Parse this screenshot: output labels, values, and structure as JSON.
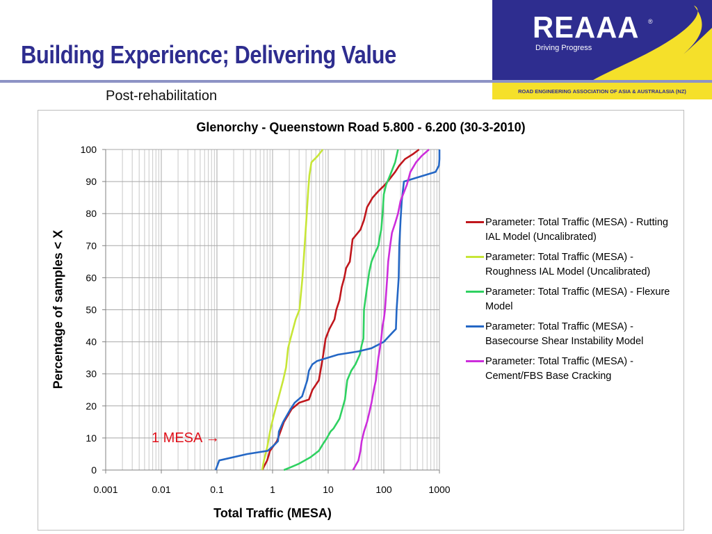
{
  "slide": {
    "title": "Building Experience; Delivering Value",
    "subtitle": "Post-rehabilitation"
  },
  "logo": {
    "wordmark": "REAAA",
    "registered": "®",
    "tagline": "Driving Progress",
    "strip_text": "ROAD ENGINEERING ASSOCIATION OF ASIA & AUSTRALASIA (NZ)",
    "colors": {
      "navy": "#2e2d8f",
      "yellow": "#f5e02a"
    }
  },
  "chart_data": {
    "type": "line",
    "title": "Glenorchy - Queenstown Road 5.800 - 6.200 (30-3-2010)",
    "xlabel": "Total Traffic (MESA)",
    "ylabel": "Percentage of samples < X",
    "xscale": "log",
    "xlim": [
      0.001,
      1000
    ],
    "ylim": [
      0,
      100
    ],
    "xticks": [
      "0.001",
      "0.01",
      "0.1",
      "1",
      "10",
      "100",
      "1000"
    ],
    "yticks": [
      "0",
      "10",
      "20",
      "30",
      "40",
      "50",
      "60",
      "70",
      "80",
      "90",
      "100"
    ],
    "grid": true,
    "legend_position": "right",
    "annotation": {
      "text": "1 MESA",
      "arrow": "→",
      "color": "#e0101a"
    },
    "series": [
      {
        "name": "Parameter: Total Traffic (MESA) - Rutting IAL Model (Uncalibrated)",
        "color": "#c0161c",
        "points": [
          [
            0.65,
            0
          ],
          [
            0.8,
            3
          ],
          [
            0.9,
            6
          ],
          [
            1.2,
            9
          ],
          [
            1.6,
            15
          ],
          [
            2.2,
            19
          ],
          [
            3,
            21
          ],
          [
            4.5,
            22
          ],
          [
            5.2,
            25
          ],
          [
            6.8,
            28
          ],
          [
            8,
            35
          ],
          [
            9,
            41
          ],
          [
            10.5,
            44
          ],
          [
            13,
            47
          ],
          [
            14,
            50
          ],
          [
            16,
            53
          ],
          [
            17.5,
            57
          ],
          [
            19.5,
            60
          ],
          [
            21,
            63
          ],
          [
            24.5,
            65
          ],
          [
            27.5,
            72
          ],
          [
            38,
            75
          ],
          [
            44,
            78
          ],
          [
            50,
            82
          ],
          [
            63,
            85
          ],
          [
            80,
            87
          ],
          [
            105,
            89
          ],
          [
            130,
            91
          ],
          [
            160,
            93
          ],
          [
            190,
            95
          ],
          [
            240,
            97
          ],
          [
            330,
            98.5
          ],
          [
            430,
            100
          ]
        ]
      },
      {
        "name": "Parameter: Total Traffic (MESA) - Roughness IAL Model (Uncalibrated)",
        "color": "#c7e637",
        "points": [
          [
            0.65,
            0
          ],
          [
            0.7,
            3
          ],
          [
            0.8,
            7
          ],
          [
            0.9,
            12
          ],
          [
            1.05,
            17
          ],
          [
            1.3,
            23
          ],
          [
            1.55,
            28
          ],
          [
            1.75,
            32
          ],
          [
            1.9,
            38
          ],
          [
            2.1,
            41
          ],
          [
            2.6,
            47
          ],
          [
            3.05,
            50
          ],
          [
            3.45,
            60
          ],
          [
            3.7,
            68
          ],
          [
            4.05,
            78
          ],
          [
            4.4,
            88
          ],
          [
            4.6,
            92
          ],
          [
            5,
            96
          ],
          [
            6.5,
            98
          ],
          [
            8,
            100
          ]
        ]
      },
      {
        "name": "Parameter: Total Traffic (MESA) - Flexure Model",
        "color": "#2fd161",
        "points": [
          [
            1.6,
            0
          ],
          [
            2.2,
            1
          ],
          [
            3,
            2
          ],
          [
            4.8,
            4
          ],
          [
            6.8,
            6
          ],
          [
            8,
            8
          ],
          [
            9.5,
            10
          ],
          [
            11,
            12
          ],
          [
            12.5,
            13
          ],
          [
            16,
            16
          ],
          [
            20,
            22
          ],
          [
            22,
            28
          ],
          [
            26,
            31
          ],
          [
            31,
            33
          ],
          [
            37,
            36
          ],
          [
            40,
            39
          ],
          [
            43,
            41
          ],
          [
            44,
            50
          ],
          [
            50,
            57
          ],
          [
            55,
            62
          ],
          [
            60,
            65
          ],
          [
            67,
            67
          ],
          [
            80,
            70
          ],
          [
            85,
            73
          ],
          [
            90,
            75
          ],
          [
            95,
            80
          ],
          [
            100,
            86
          ],
          [
            110,
            89
          ],
          [
            130,
            92
          ],
          [
            160,
            96
          ],
          [
            180,
            100
          ]
        ]
      },
      {
        "name": "Parameter: Total Traffic (MESA) - Basecourse Shear Instability Model",
        "color": "#2467c5",
        "points": [
          [
            0.095,
            0
          ],
          [
            0.11,
            3
          ],
          [
            0.35,
            5
          ],
          [
            0.82,
            6
          ],
          [
            1.1,
            8
          ],
          [
            1.25,
            9
          ],
          [
            1.3,
            12
          ],
          [
            1.55,
            15
          ],
          [
            2.1,
            19
          ],
          [
            2.5,
            21
          ],
          [
            3.4,
            23
          ],
          [
            4.2,
            28
          ],
          [
            4.5,
            31
          ],
          [
            5.2,
            33
          ],
          [
            6.3,
            34
          ],
          [
            15,
            36
          ],
          [
            35,
            37
          ],
          [
            60,
            38
          ],
          [
            100,
            40
          ],
          [
            145,
            43
          ],
          [
            165,
            44
          ],
          [
            170,
            50
          ],
          [
            185,
            60
          ],
          [
            190,
            70
          ],
          [
            200,
            78
          ],
          [
            210,
            84
          ],
          [
            220,
            87
          ],
          [
            230,
            90
          ],
          [
            850,
            93
          ],
          [
            980,
            95
          ],
          [
            1000,
            97
          ],
          [
            1000,
            100
          ]
        ]
      },
      {
        "name": "Parameter: Total Traffic (MESA) - Cement/FBS Base Cracking",
        "color": "#cc2ddb",
        "points": [
          [
            28,
            0
          ],
          [
            35,
            3
          ],
          [
            38,
            6
          ],
          [
            40,
            9
          ],
          [
            44,
            12
          ],
          [
            50,
            15
          ],
          [
            55,
            18
          ],
          [
            60,
            21
          ],
          [
            66,
            25
          ],
          [
            72,
            28
          ],
          [
            75,
            31
          ],
          [
            80,
            35
          ],
          [
            85,
            38
          ],
          [
            90,
            41
          ],
          [
            95,
            45
          ],
          [
            100,
            47
          ],
          [
            105,
            50
          ],
          [
            110,
            55
          ],
          [
            115,
            60
          ],
          [
            120,
            65
          ],
          [
            130,
            70
          ],
          [
            140,
            74
          ],
          [
            160,
            77
          ],
          [
            180,
            80
          ],
          [
            200,
            84
          ],
          [
            260,
            89
          ],
          [
            300,
            93
          ],
          [
            380,
            96
          ],
          [
            480,
            98
          ],
          [
            650,
            100
          ]
        ]
      }
    ]
  }
}
